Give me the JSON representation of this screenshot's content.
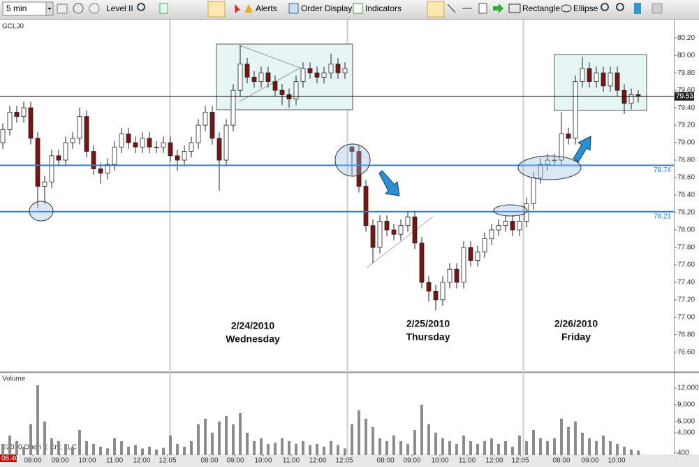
{
  "toolbar": {
    "timeframe": "5 min",
    "level2": "Level II",
    "alerts": "Alerts",
    "order_display": "Order Display",
    "indicators": "Indicators",
    "rectangle": "Rectangle",
    "ellipse": "Ellipse"
  },
  "footer": "©2010 Open E Cry, LLC",
  "chart_data": [
    {
      "type": "candlestick",
      "title": "GCLJ0",
      "up_color": "#ffffff",
      "down_color": "#7a1414",
      "x_start_label": "06:40",
      "open": [
        79.0,
        79.15,
        79.35,
        79.3,
        79.4,
        79.05,
        78.5,
        78.55,
        78.85,
        78.8,
        79.0,
        79.05,
        79.3,
        78.9,
        78.7,
        78.65,
        78.75,
        78.95,
        79.1,
        79.0,
        78.95,
        79.05,
        78.95,
        78.95,
        79.0,
        78.85,
        78.8,
        78.9,
        79.0,
        79.2,
        79.35,
        79.05,
        78.8,
        79.2,
        79.6,
        79.9,
        79.75,
        79.7,
        79.8,
        79.7,
        79.6,
        79.55,
        79.5,
        79.7,
        79.85,
        79.8,
        79.75,
        79.8,
        79.9,
        79.8,
        78.95,
        78.9,
        78.5,
        78.05,
        77.8,
        78.1,
        78.0,
        77.95,
        78.05,
        78.15,
        77.85,
        77.4,
        77.3,
        77.2,
        77.4,
        77.55,
        77.4,
        77.8,
        77.65,
        77.75,
        77.9,
        78.0,
        78.05,
        78.1,
        78.0,
        78.1,
        78.3,
        78.6,
        78.75,
        78.8,
        78.8,
        79.1,
        79.05,
        79.7,
        79.85,
        79.7,
        79.8,
        79.65,
        79.8,
        79.6,
        79.45,
        79.55
      ],
      "high": [
        79.22,
        79.42,
        79.42,
        79.47,
        79.47,
        79.12,
        78.62,
        78.92,
        78.92,
        79.07,
        79.12,
        79.4,
        79.37,
        78.97,
        78.77,
        78.82,
        79.02,
        79.17,
        79.17,
        79.07,
        79.12,
        79.12,
        79.02,
        79.07,
        79.07,
        78.92,
        78.97,
        79.07,
        79.27,
        79.42,
        79.42,
        79.12,
        79.27,
        79.67,
        80.12,
        79.97,
        79.82,
        79.87,
        79.87,
        79.77,
        79.67,
        79.62,
        79.77,
        79.92,
        79.92,
        79.87,
        79.87,
        80.02,
        79.97,
        79.92,
        78.97,
        78.97,
        78.57,
        78.12,
        78.17,
        78.17,
        78.07,
        78.12,
        78.22,
        78.22,
        77.92,
        77.47,
        77.37,
        77.47,
        77.62,
        77.62,
        77.87,
        77.87,
        77.82,
        77.97,
        78.07,
        78.12,
        78.17,
        78.17,
        78.17,
        78.37,
        78.67,
        78.82,
        78.87,
        78.87,
        79.35,
        79.17,
        79.77,
        79.98,
        79.92,
        79.87,
        79.87,
        79.87,
        79.87,
        79.67,
        79.62,
        79.6
      ],
      "low": [
        78.93,
        79.08,
        79.23,
        79.23,
        78.98,
        78.25,
        78.3,
        78.48,
        78.73,
        78.73,
        78.93,
        78.98,
        78.83,
        78.63,
        78.53,
        78.58,
        78.68,
        78.88,
        78.93,
        78.88,
        78.88,
        78.88,
        78.88,
        78.88,
        78.78,
        78.68,
        78.73,
        78.83,
        78.93,
        79.13,
        78.98,
        78.45,
        78.73,
        79.13,
        79.53,
        79.68,
        79.63,
        79.63,
        79.63,
        79.53,
        79.43,
        79.4,
        79.43,
        79.63,
        79.73,
        79.68,
        79.68,
        79.73,
        79.73,
        79.73,
        78.63,
        78.43,
        77.98,
        77.62,
        77.73,
        77.93,
        77.88,
        77.88,
        77.98,
        77.78,
        77.33,
        77.18,
        77.08,
        77.13,
        77.33,
        77.33,
        77.33,
        77.58,
        77.58,
        77.68,
        77.83,
        77.93,
        77.98,
        77.93,
        77.93,
        78.03,
        78.23,
        78.53,
        78.68,
        78.73,
        78.73,
        78.98,
        78.98,
        79.63,
        79.63,
        79.63,
        79.58,
        79.58,
        79.53,
        79.33,
        79.38,
        79.46
      ],
      "close": [
        79.15,
        79.35,
        79.3,
        79.4,
        79.05,
        78.5,
        78.55,
        78.85,
        78.8,
        79.0,
        79.05,
        79.3,
        78.9,
        78.7,
        78.65,
        78.75,
        78.95,
        79.1,
        79.0,
        78.95,
        79.05,
        78.95,
        78.95,
        79.0,
        78.85,
        78.8,
        78.9,
        79.0,
        79.2,
        79.35,
        79.05,
        78.8,
        79.2,
        79.6,
        79.9,
        79.75,
        79.7,
        79.8,
        79.7,
        79.6,
        79.55,
        79.5,
        79.7,
        79.85,
        79.8,
        79.75,
        79.8,
        79.9,
        79.8,
        79.85,
        78.9,
        78.5,
        78.05,
        77.8,
        78.1,
        78.0,
        77.95,
        78.05,
        78.15,
        77.85,
        77.4,
        77.3,
        77.2,
        77.4,
        77.55,
        77.4,
        77.8,
        77.65,
        77.75,
        77.9,
        78.0,
        78.05,
        78.1,
        78.0,
        78.1,
        78.3,
        78.6,
        78.75,
        78.8,
        78.8,
        79.1,
        79.05,
        79.7,
        79.85,
        79.7,
        79.8,
        79.65,
        79.8,
        79.6,
        79.45,
        79.55,
        79.53
      ],
      "xlim": [
        -0.4,
        96.1
      ],
      "xticks": [
        {
          "value": 4.3,
          "label": "08:00"
        },
        {
          "value": 8.2,
          "label": "09:00"
        },
        {
          "value": 12.1,
          "label": "10:00"
        },
        {
          "value": 16,
          "label": "11:00"
        },
        {
          "value": 19.9,
          "label": "12:00"
        },
        {
          "value": 23.6,
          "label": "12:05"
        },
        {
          "value": 29.6,
          "label": "08:00"
        },
        {
          "value": 33.3,
          "label": "09:00"
        },
        {
          "value": 37.3,
          "label": "10:00"
        },
        {
          "value": 41.3,
          "label": "11:00"
        },
        {
          "value": 45.1,
          "label": "12:00"
        },
        {
          "value": 48.9,
          "label": "12:05"
        },
        {
          "value": 54.8,
          "label": "08:00"
        },
        {
          "value": 58.6,
          "label": "09:00"
        },
        {
          "value": 62.6,
          "label": "10:00"
        },
        {
          "value": 66.5,
          "label": "11:00"
        },
        {
          "value": 70.4,
          "label": "12:00"
        },
        {
          "value": 74.1,
          "label": "12:05"
        },
        {
          "value": 80,
          "label": "08:00"
        },
        {
          "value": 84.1,
          "label": "09:00"
        },
        {
          "value": 87.9,
          "label": "10:00"
        }
      ],
      "ylim": [
        76.39,
        80.41
      ],
      "yticks": [
        {
          "value": 76.6,
          "label": "76.60"
        },
        {
          "value": 76.8,
          "label": "76.80"
        },
        {
          "value": 77.0,
          "label": "77.00"
        },
        {
          "value": 77.2,
          "label": "77.20"
        },
        {
          "value": 77.4,
          "label": "77.40"
        },
        {
          "value": 77.6,
          "label": "77.60"
        },
        {
          "value": 77.8,
          "label": "77.80"
        },
        {
          "value": 78.0,
          "label": "78.00"
        },
        {
          "value": 78.2,
          "label": "78.20"
        },
        {
          "value": 78.4,
          "label": "78.40"
        },
        {
          "value": 78.6,
          "label": "78.60"
        },
        {
          "value": 78.8,
          "label": "78.80"
        },
        {
          "value": 79.0,
          "label": "79.00"
        },
        {
          "value": 79.2,
          "label": "79.20"
        },
        {
          "value": 79.4,
          "label": "79.40"
        },
        {
          "value": 79.6,
          "label": "79.60"
        },
        {
          "value": 79.8,
          "label": "79.80"
        },
        {
          "value": 80.0,
          "label": "80.00"
        },
        {
          "value": 80.2,
          "label": "80.20"
        }
      ],
      "levels": [
        78.74,
        78.21
      ],
      "level_color": "#1e7fd8",
      "last_price": 79.53,
      "day_labels": [
        {
          "date": "2/24/2010",
          "day": "Wednesday"
        },
        {
          "date": "2/25/2010",
          "day": "Thursday"
        },
        {
          "date": "2/26/2010",
          "day": "Friday"
        }
      ]
    },
    {
      "type": "bar",
      "title": "Volume",
      "color": "#8c8c8c",
      "values": [
        2000,
        3500,
        2500,
        1500,
        5500,
        12500,
        6000,
        3000,
        2500,
        2000,
        1500,
        4500,
        2500,
        2000,
        1500,
        1200,
        3000,
        2500,
        1500,
        1800,
        1200,
        1500,
        1000,
        1300,
        3500,
        2000,
        1500,
        2500,
        5500,
        6500,
        4000,
        6000,
        7000,
        5500,
        7500,
        4000,
        2500,
        3000,
        2000,
        2200,
        3000,
        2500,
        2000,
        2500,
        1800,
        2000,
        1500,
        2500,
        1800,
        1200,
        5500,
        8000,
        6500,
        5000,
        3000,
        2500,
        3500,
        2500,
        2000,
        4500,
        9000,
        5500,
        4000,
        3000,
        2500,
        2000,
        3500,
        2500,
        2000,
        2500,
        3000,
        2000,
        2500,
        1500,
        3500,
        2500,
        4500,
        3000,
        2500,
        3000,
        6500,
        5000,
        6000,
        4000,
        3000,
        2500,
        3500,
        2500,
        2000,
        1500,
        1000,
        800
      ],
      "ylim": [
        0,
        14500
      ],
      "yticks": [
        400,
        {
          "value": 4000,
          "label": "4,000"
        },
        {
          "value": 6000,
          "label": "6,000"
        },
        {
          "value": 9000,
          "label": "9,000"
        },
        {
          "value": 12000,
          "label": "12,000"
        }
      ]
    }
  ]
}
